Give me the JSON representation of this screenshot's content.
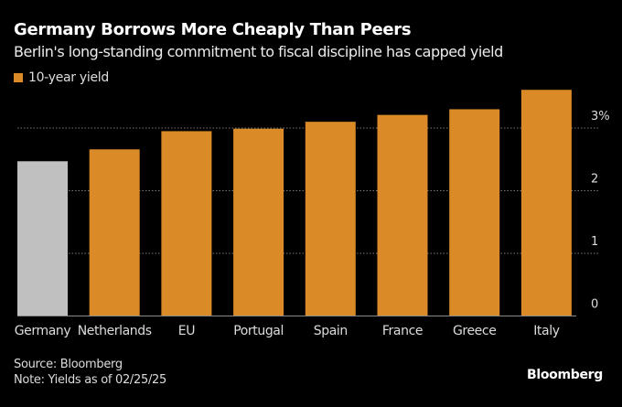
{
  "header": {
    "title": "Germany Borrows More Cheaply Than Peers",
    "subtitle": "Berlin's long-standing commitment to fiscal discipline has capped yield"
  },
  "legend": {
    "label": "10-year yield",
    "color": "#da8a27"
  },
  "footer": {
    "source": "Source: Bloomberg",
    "note": "Note: Yields as of 02/25/25",
    "brand": "Bloomberg"
  },
  "colors": {
    "background": "#000000",
    "bar": "#da8a27",
    "highlight_bar": "#c0c0c0",
    "grid": "#777777",
    "axis": "#888888"
  },
  "chart_data": {
    "type": "bar",
    "title": "Germany Borrows More Cheaply Than Peers",
    "subtitle": "Berlin's long-standing commitment to fiscal discipline has capped yield",
    "xlabel": "",
    "ylabel": "",
    "categories": [
      "Germany",
      "Netherlands",
      "EU",
      "Portugal",
      "Spain",
      "France",
      "Greece",
      "Italy"
    ],
    "series": [
      {
        "name": "10-year yield",
        "values": [
          2.47,
          2.66,
          2.95,
          2.99,
          3.1,
          3.21,
          3.3,
          3.61
        ]
      }
    ],
    "highlight_category": "Germany",
    "ylim": [
      0,
      3.7
    ],
    "yticks": [
      0,
      1,
      2,
      3
    ],
    "ytick_labels": [
      "0",
      "1",
      "2",
      "3%"
    ],
    "grid": true,
    "legend_position": "top-left",
    "y_axis_side": "right"
  }
}
